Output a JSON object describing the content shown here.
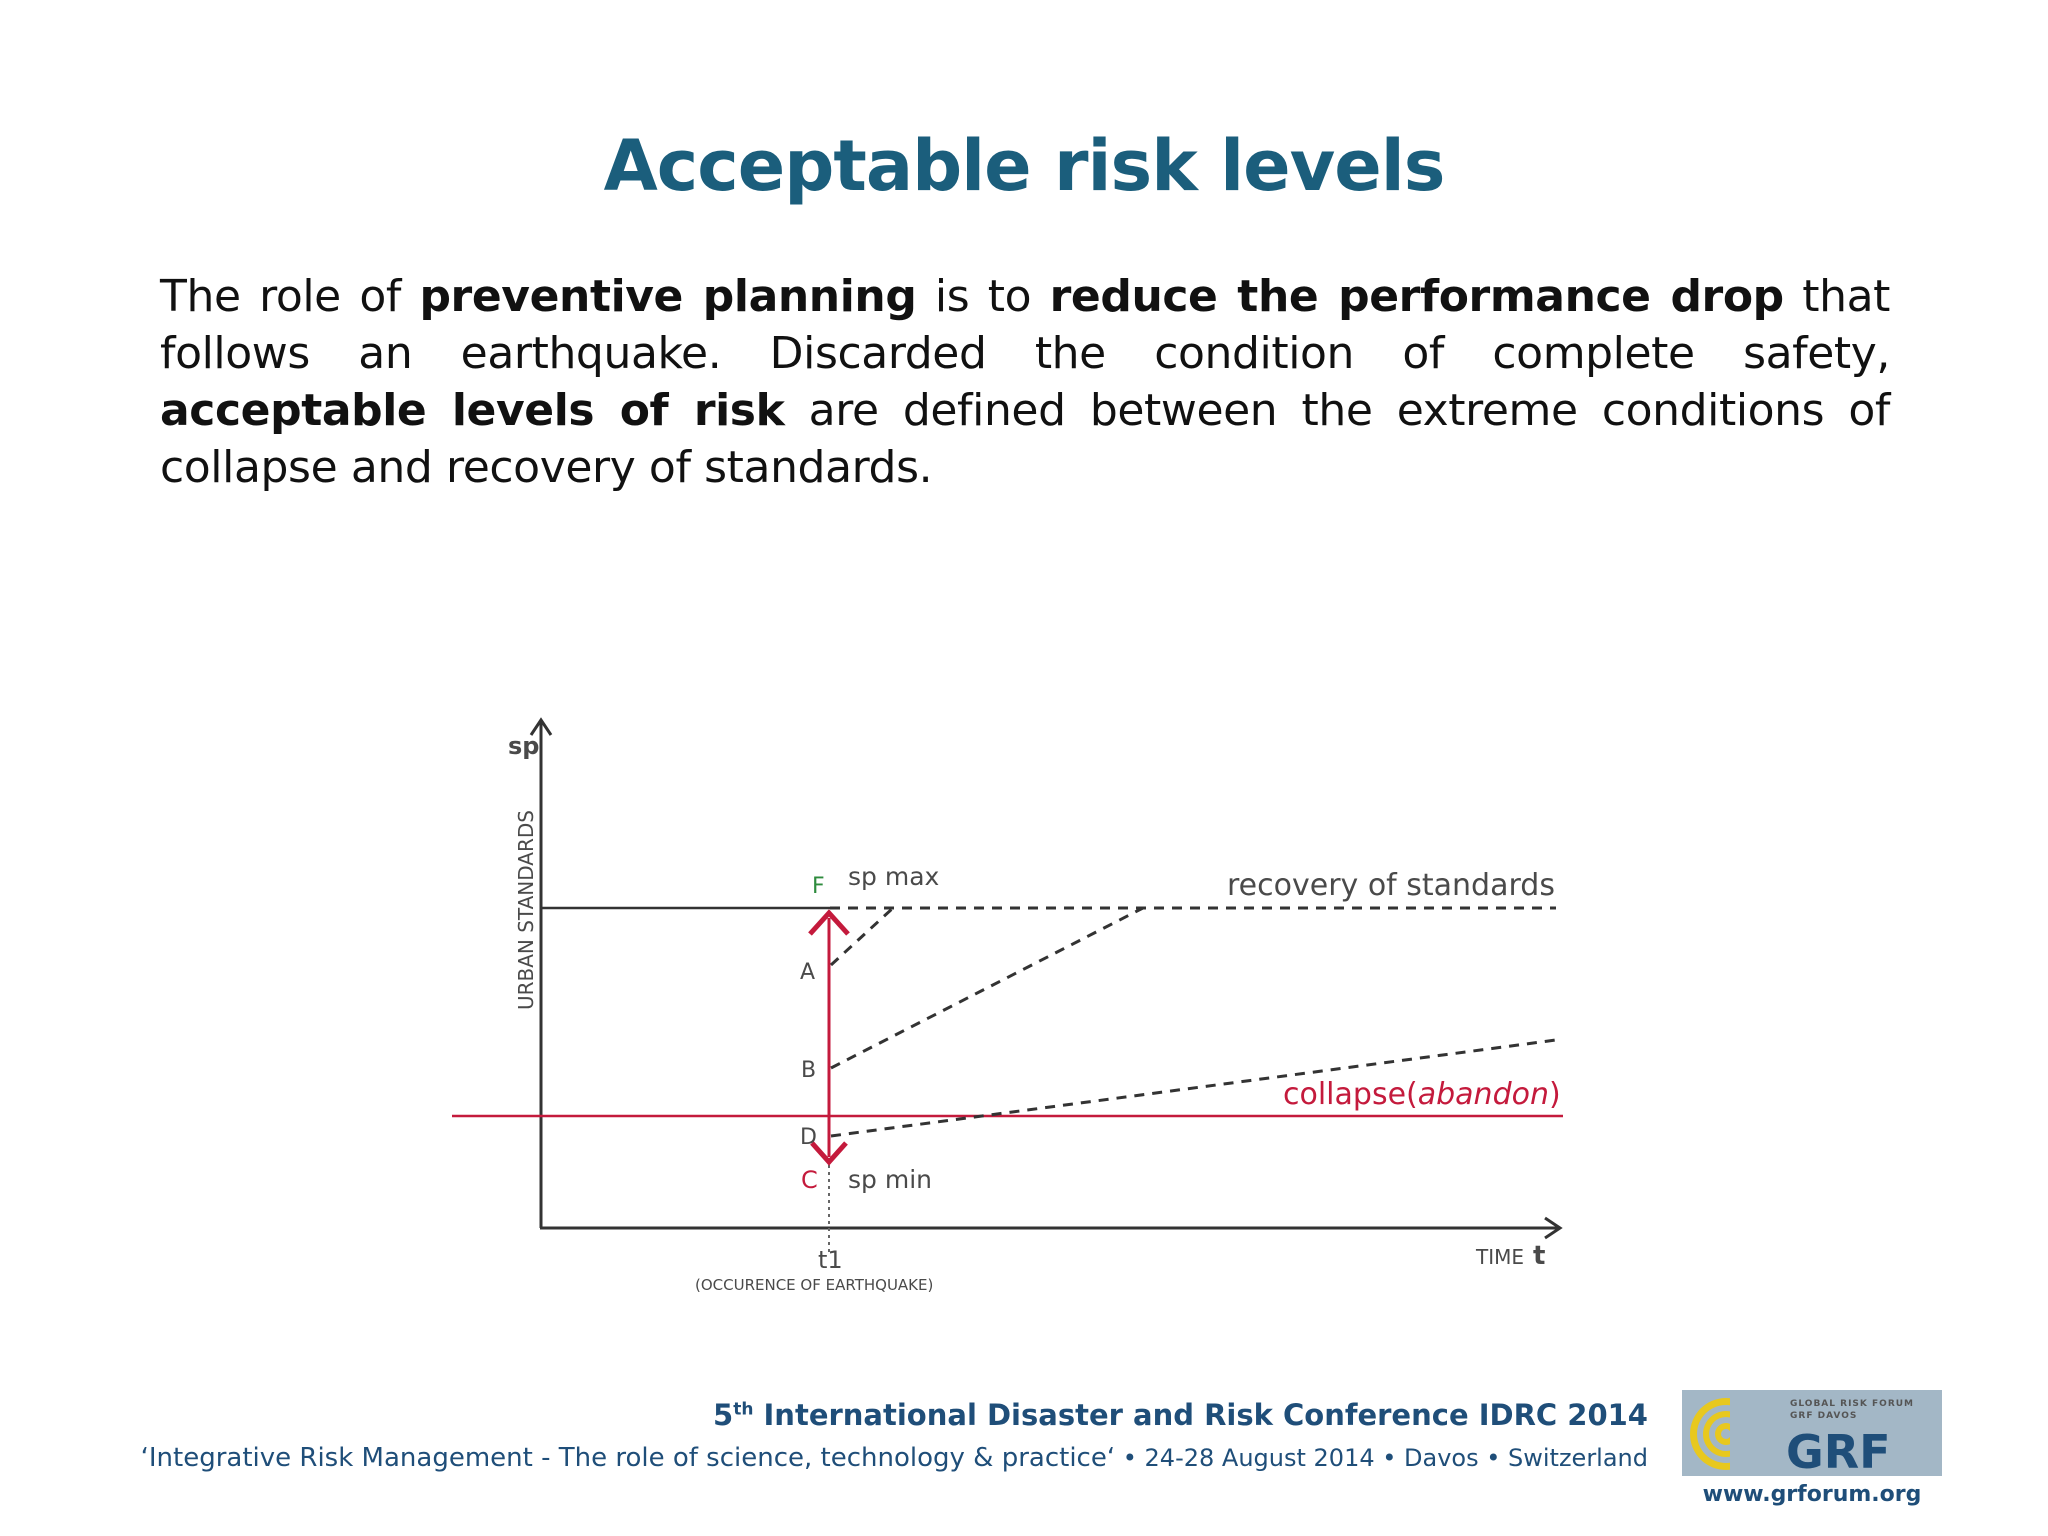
{
  "colors": {
    "title": "#1b5e7c",
    "accent_red": "#c41a3c",
    "marker_green": "#2e8b3d",
    "axis": "#333333",
    "footer_blue": "#1f4e79",
    "logo_bg": "#a3b7c6",
    "logo_yellow": "#e8c81e"
  },
  "slide": {
    "title": "Acceptable risk levels",
    "body": {
      "p1": "The role of ",
      "b1": "preventive planning",
      "p2": " is to ",
      "b2": "reduce the performance drop",
      "p3": " that follows an earthquake. Discarded the condition of complete safety, ",
      "b3": "acceptable levels of risk",
      "p4": " are defined between the extreme conditions of collapse and recovery of standards."
    }
  },
  "diagram": {
    "y_axis_symbol": "sp",
    "y_axis_label": "URBAN STANDARDS",
    "x_axis_symbol": "t",
    "x_axis_label": "TIME",
    "t1_label": "t1",
    "t1_caption": "(OCCURENCE OF EARTHQUAKE)",
    "sp_max_label": "sp max",
    "sp_min_label": "sp min",
    "recovery_label": "recovery of standards",
    "collapse_label_prefix": "collapse(",
    "collapse_label_italic": "abandon",
    "collapse_label_suffix": ")",
    "points": {
      "F": "F",
      "A": "A",
      "B": "B",
      "D": "D",
      "C": "C"
    }
  },
  "footer": {
    "conf_num": "5",
    "conf_sup": "th",
    "conf_rest": " International Disaster and Risk Conference IDRC 2014",
    "subtitle": "‘Integrative Risk Management - The role of science, technology & practice‘",
    "details": " • 24-28 August 2014 • Davos • Switzerland",
    "logo_line1": "GLOBAL RISK FORUM",
    "logo_line2": "GRF DAVOS",
    "logo_word": "GRF",
    "url": "www.grforum.org"
  }
}
